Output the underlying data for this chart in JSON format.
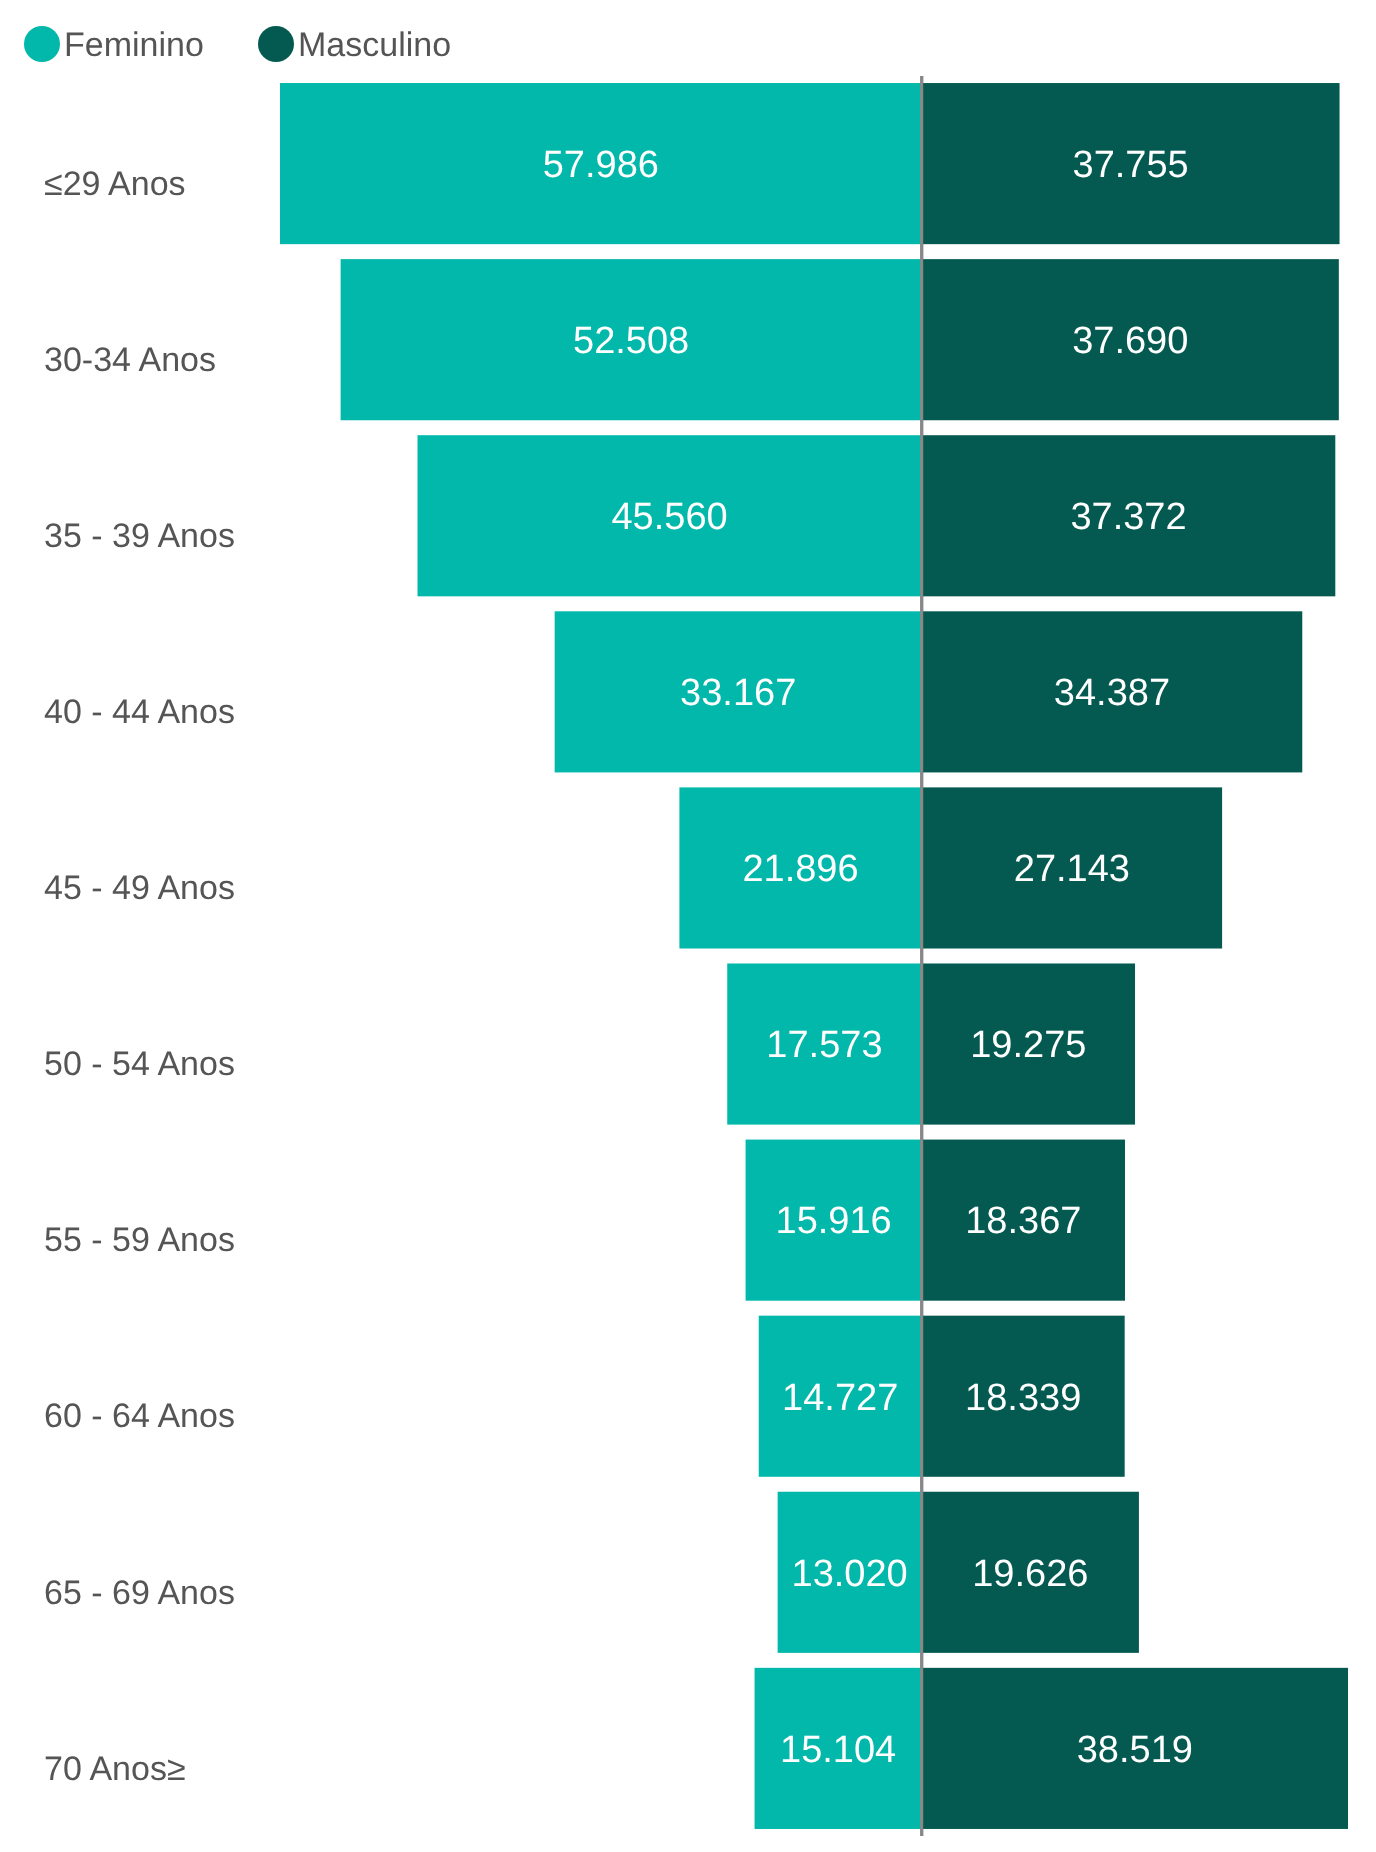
{
  "chart_data": [
    {
      "type": "bar",
      "orientation": "horizontal",
      "categories": [
        "≤29 Anos",
        "30-34 Anos",
        "35 - 39 Anos",
        "40 - 44 Anos",
        "45 - 49 Anos",
        "50 - 54 Anos",
        "55 - 59 Anos",
        "60 - 64 Anos",
        "65 - 69 Anos",
        "70 Anos≥"
      ],
      "xlim": [
        57.986,
        0
      ],
      "legend": "top left",
      "series": [
        {
          "name": "Feminino",
          "color": "#01b8aa",
          "values": [
            57.986,
            52.508,
            45.56,
            33.167,
            21.896,
            17.573,
            15.916,
            14.727,
            13.02,
            15.104
          ],
          "value_labels": [
            "57.986",
            "52.508",
            "45.560",
            "33.167",
            "21.896",
            "17.573",
            "15.916",
            "14.727",
            "13.020",
            "15.104"
          ]
        }
      ]
    },
    {
      "type": "bar",
      "orientation": "horizontal",
      "categories": [
        null,
        null,
        null,
        null,
        null,
        null,
        null,
        null,
        null,
        null
      ],
      "legend": "top left",
      "series": [
        {
          "name": "Masculino",
          "color": "#045a50",
          "values": [
            37.755,
            37.69,
            37.372,
            34.387,
            27.143,
            19.275,
            18.367,
            18.339,
            19.626,
            38.519
          ],
          "value_labels": [
            "37.755",
            "37.690",
            "37.372",
            "34.387",
            "27.143",
            "19.275",
            "18.367",
            "18.339",
            "19.626",
            "38.519"
          ]
        }
      ]
    }
  ]
}
